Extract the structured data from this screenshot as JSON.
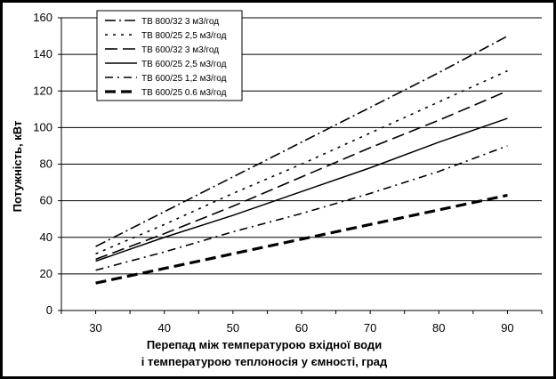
{
  "chart_data": {
    "type": "line",
    "ylabel": "Потужність, кВт",
    "xlabel_lines": [
      "Перепад між температурою вхідної води",
      "і температурою теплоносія у ємності, град"
    ],
    "x": [
      30,
      40,
      50,
      60,
      70,
      80,
      90
    ],
    "xlim": [
      25,
      95
    ],
    "ylim": [
      0,
      160
    ],
    "yticks": [
      0,
      20,
      40,
      60,
      80,
      100,
      120,
      140,
      160
    ],
    "xticks": [
      30,
      40,
      50,
      60,
      70,
      80,
      90
    ],
    "grid": true,
    "legend_position": "top-left",
    "series": [
      {
        "name": "ТВ 800/32 3 м3/год",
        "values": [
          35,
          54,
          73,
          92,
          111,
          130,
          150
        ]
      },
      {
        "name": "ТВ 800/25 2,5 м3/год",
        "values": [
          31,
          47,
          64,
          80,
          97,
          114,
          131
        ]
      },
      {
        "name": "ТВ 600/32 3 м3/год",
        "values": [
          28,
          42,
          57,
          73,
          89,
          104,
          120
        ]
      },
      {
        "name": "ТВ 600/25 2,5 м3/год",
        "values": [
          27,
          40,
          52,
          65,
          78,
          92,
          105
        ]
      },
      {
        "name": "ТВ 600/25 1,2 м3/год",
        "values": [
          22,
          32,
          43,
          53,
          64,
          76,
          90
        ]
      },
      {
        "name": "ТВ 600/25 0.6 м3/год",
        "values": [
          15,
          23,
          31,
          39,
          47,
          55,
          63
        ]
      }
    ]
  },
  "styles": {
    "axis_color": "#000000",
    "grid_color": "#000000",
    "line_color": "#000000"
  }
}
